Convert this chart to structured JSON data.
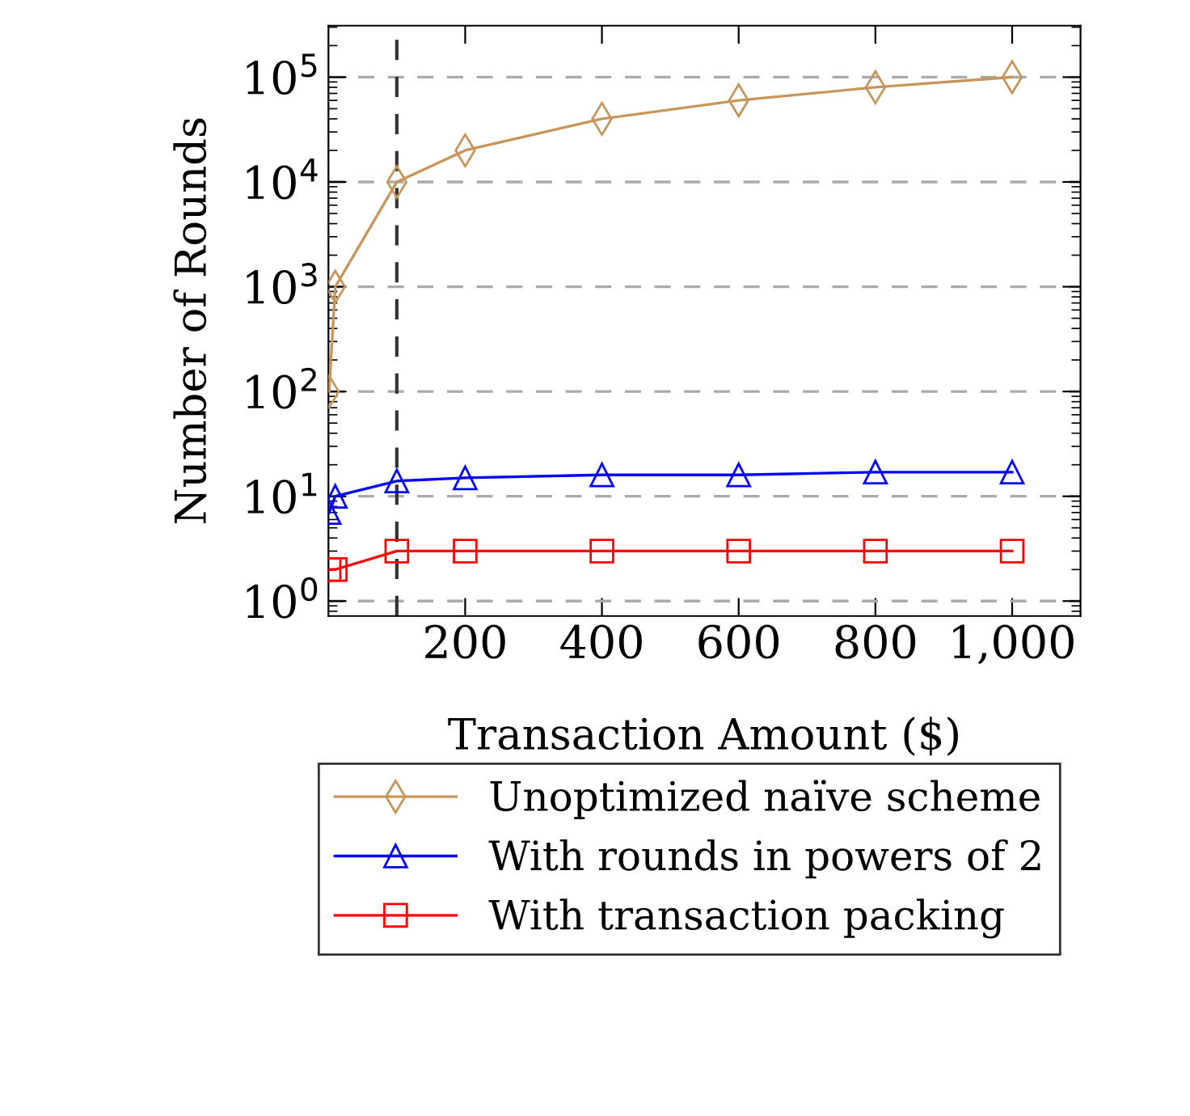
{
  "chart_data": {
    "type": "line",
    "xlabel": "Transaction Amount ($)",
    "ylabel": "Number of Rounds",
    "x": [
      1,
      10,
      100,
      200,
      400,
      600,
      800,
      1000
    ],
    "series": [
      {
        "name": "Unoptimized naïve scheme",
        "color": "#c8965a",
        "marker": "diamond",
        "values": [
          100,
          1000,
          10000,
          20000,
          40000,
          60000,
          80000,
          100000
        ]
      },
      {
        "name": "With rounds in powers of 2",
        "color": "#0000ff",
        "marker": "triangle",
        "values": [
          7,
          10,
          14,
          15,
          16,
          16,
          17,
          17
        ]
      },
      {
        "name": "With transaction packing",
        "color": "#ff0000",
        "marker": "square",
        "values": [
          2,
          2,
          3,
          3,
          3,
          3,
          3,
          3
        ]
      }
    ],
    "log": "y",
    "xlim": [
      0,
      1100
    ],
    "ylim": [
      0.72,
      310000
    ],
    "xticks": [
      200,
      400,
      600,
      {
        "value": 800,
        "label": "800"
      },
      {
        "value": 1000,
        "label": "1,000"
      }
    ],
    "yticks": [
      {
        "value": 1,
        "label": "10$^{0}$"
      },
      {
        "value": 10,
        "label": "10$^{1}$"
      },
      {
        "value": 100,
        "label": "10$^{2}$"
      },
      {
        "value": 1000,
        "label": "10$^{3}$"
      },
      {
        "value": 10000,
        "label": "10$^{4}$"
      },
      {
        "value": 100000,
        "label": "10$^{5}$"
      }
    ],
    "ref_lines": [
      {
        "axis": "x",
        "value": 100,
        "color": "#333333",
        "line_style": "dashed"
      }
    ],
    "grid": "y",
    "legend": "bottom",
    "line_style": "solid"
  }
}
